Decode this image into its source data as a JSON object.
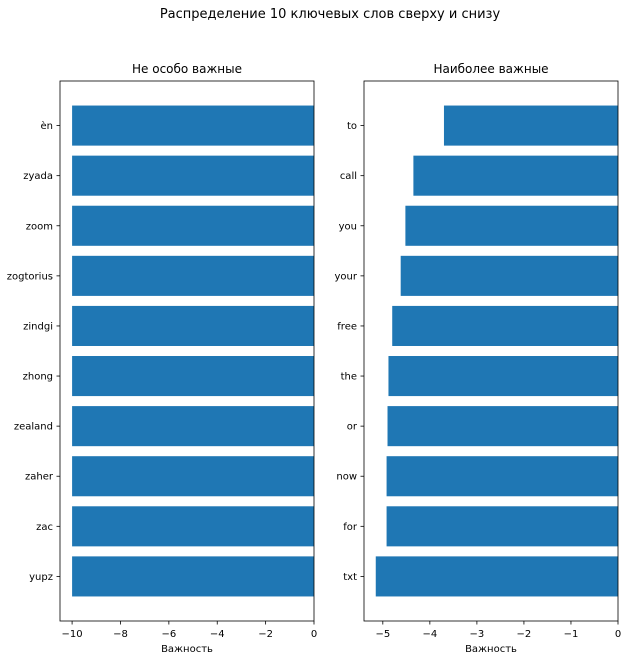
{
  "figure": {
    "suptitle": "Распределение 10 ключевых слов сверху и снизу"
  },
  "chart_data": [
    {
      "type": "bar",
      "orientation": "horizontal",
      "title": "Не особо важные",
      "xlabel": "Важность",
      "ylabel": "",
      "xlim": [
        -10.5,
        0
      ],
      "xticks": [
        -10,
        -8,
        -6,
        -4,
        -2,
        0
      ],
      "xtick_labels": [
        "−10",
        "−8",
        "−6",
        "−4",
        "−2",
        "0"
      ],
      "categories": [
        "èn",
        "zyada",
        "zoom",
        "zogtorius",
        "zindgi",
        "zhong",
        "zealand",
        "zaher",
        "zac",
        "yupz"
      ],
      "values": [
        -10,
        -10,
        -10,
        -10,
        -10,
        -10,
        -10,
        -10,
        -10,
        -10
      ],
      "bar_color": "#1f77b4",
      "grid": false
    },
    {
      "type": "bar",
      "orientation": "horizontal",
      "title": "Наиболее важные",
      "xlabel": "Важность",
      "ylabel": "",
      "xlim": [
        -5.4,
        0
      ],
      "xticks": [
        -5,
        -4,
        -3,
        -2,
        -1,
        0
      ],
      "xtick_labels": [
        "−5",
        "−4",
        "−3",
        "−2",
        "−1",
        "0"
      ],
      "categories": [
        "to",
        "call",
        "you",
        "your",
        "free",
        "the",
        "or",
        "now",
        "for",
        "txt"
      ],
      "values": [
        -3.7,
        -4.35,
        -4.52,
        -4.62,
        -4.8,
        -4.88,
        -4.9,
        -4.92,
        -4.92,
        -5.15
      ],
      "bar_color": "#1f77b4",
      "grid": false
    }
  ]
}
